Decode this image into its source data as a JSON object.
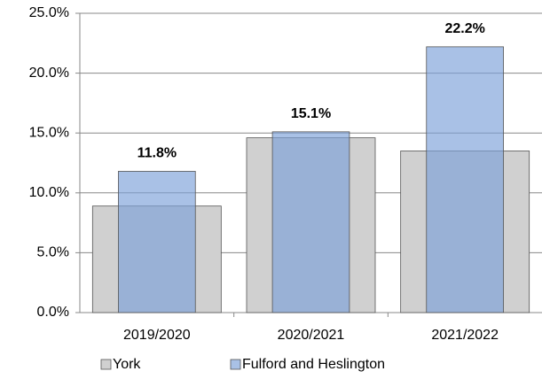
{
  "chart_data": {
    "type": "bar",
    "categories": [
      "2019/2020",
      "2020/2021",
      "2021/2022"
    ],
    "series": [
      {
        "name": "York",
        "color": "#d0d0d0",
        "values": [
          8.9,
          14.6,
          13.5
        ]
      },
      {
        "name": "Fulford and Heslington",
        "color": "#7ba0d8",
        "values": [
          11.8,
          15.1,
          22.2
        ],
        "value_labels": [
          "11.8%",
          "15.1%",
          "22.2%"
        ]
      }
    ],
    "ylim": [
      0,
      25
    ],
    "yticks": [
      {
        "value": 0,
        "label": "0.0%"
      },
      {
        "value": 5,
        "label": "5.0%"
      },
      {
        "value": 10,
        "label": "10.0%"
      },
      {
        "value": 15,
        "label": "15.0%"
      },
      {
        "value": 20,
        "label": "20.0%"
      },
      {
        "value": 25,
        "label": "25.0%"
      }
    ],
    "grid": true,
    "legend": "bottom"
  }
}
